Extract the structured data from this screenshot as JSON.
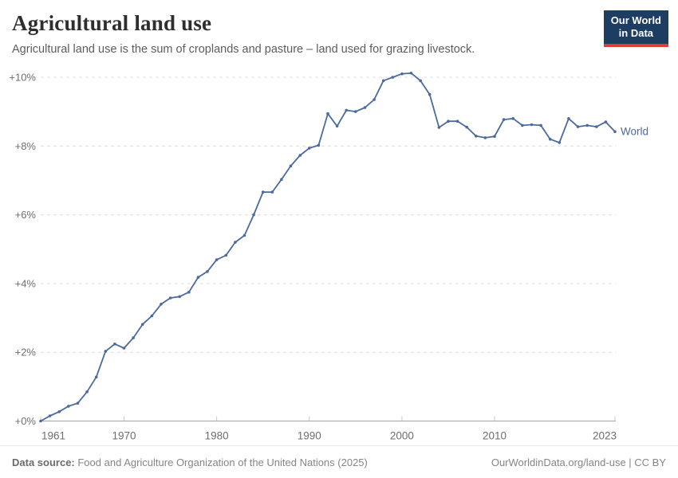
{
  "header": {
    "title": "Agricultural land use",
    "subtitle": "Agricultural land use is the sum of croplands and pasture – land used for grazing livestock.",
    "logo": {
      "line1": "Our World",
      "line2": "in Data",
      "bg_color": "#1d3d63",
      "accent_color": "#dc3f34"
    }
  },
  "footer": {
    "datasource_label": "Data source:",
    "datasource_text": " Food and Agriculture Organization of the United Nations (2025)",
    "credit": "OurWorldinData.org/land-use | CC BY"
  },
  "chart_data": {
    "type": "line",
    "title": "Agricultural land use",
    "xlabel": "",
    "ylabel": "",
    "grid": "dashed-horizontal",
    "legend_position": "end-of-line-label",
    "xlim": [
      1961,
      2023
    ],
    "ylim": [
      0,
      10.3
    ],
    "x_ticks": [
      1961,
      1970,
      1980,
      1990,
      2000,
      2010,
      2023
    ],
    "y_ticks": [
      {
        "value": 0,
        "label": "+0%"
      },
      {
        "value": 2,
        "label": "+2%"
      },
      {
        "value": 4,
        "label": "+4%"
      },
      {
        "value": 6,
        "label": "+6%"
      },
      {
        "value": 8,
        "label": "+8%"
      },
      {
        "value": 10,
        "label": "+10%"
      }
    ],
    "series": [
      {
        "name": "World",
        "color": "#4C6A9C",
        "x": [
          1961,
          1962,
          1963,
          1964,
          1965,
          1966,
          1967,
          1968,
          1969,
          1970,
          1971,
          1972,
          1973,
          1974,
          1975,
          1976,
          1977,
          1978,
          1979,
          1980,
          1981,
          1982,
          1983,
          1984,
          1985,
          1986,
          1987,
          1988,
          1989,
          1990,
          1991,
          1992,
          1993,
          1994,
          1995,
          1996,
          1997,
          1998,
          1999,
          2000,
          2001,
          2002,
          2003,
          2004,
          2005,
          2006,
          2007,
          2008,
          2009,
          2010,
          2011,
          2012,
          2013,
          2014,
          2015,
          2016,
          2017,
          2018,
          2019,
          2020,
          2021,
          2022,
          2023
        ],
        "values": [
          0.0,
          0.15,
          0.27,
          0.43,
          0.52,
          0.85,
          1.28,
          2.03,
          2.24,
          2.12,
          2.42,
          2.81,
          3.06,
          3.4,
          3.58,
          3.62,
          3.75,
          4.18,
          4.35,
          4.69,
          4.82,
          5.2,
          5.4,
          6.0,
          6.66,
          6.66,
          7.03,
          7.42,
          7.73,
          7.94,
          8.02,
          8.94,
          8.58,
          9.04,
          9.0,
          9.12,
          9.35,
          9.9,
          10.0,
          10.1,
          10.12,
          9.9,
          9.5,
          8.54,
          8.72,
          8.72,
          8.55,
          8.29,
          8.24,
          8.28,
          8.77,
          8.8,
          8.6,
          8.62,
          8.6,
          8.2,
          8.1,
          8.8,
          8.56,
          8.6,
          8.56,
          8.7,
          8.42
        ]
      }
    ],
    "colors": {
      "gridline": "#dcdcdc",
      "axis": "#a3a3a3",
      "tick_label": "#6e6e6e"
    }
  }
}
